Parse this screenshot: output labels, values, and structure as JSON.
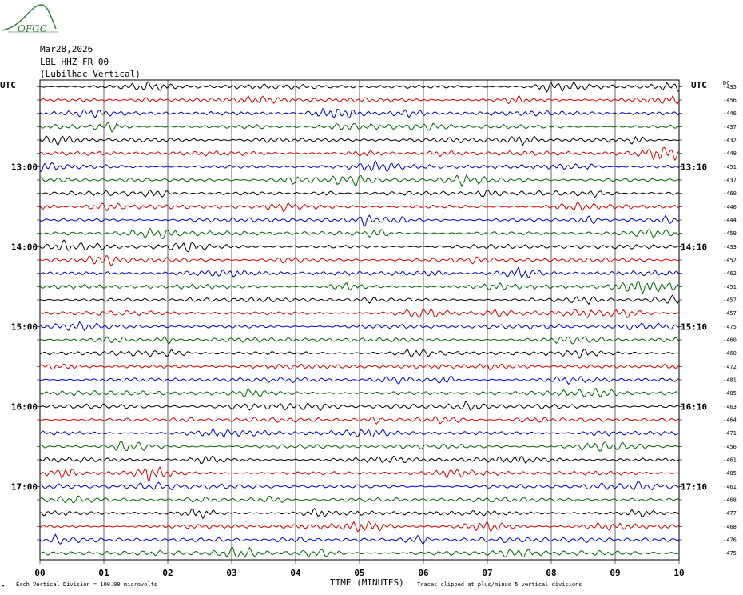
{
  "logo": {
    "text": "OFGC",
    "color": "#3a7a3a"
  },
  "header": {
    "date": "Mar28,2026",
    "station": "LBL HHZ FR 00",
    "location": "(Lubilhac Vertical)"
  },
  "labels": {
    "utc_left": "UTC",
    "utc_right": "UTC",
    "dc": "DC",
    "xlabel": "TIME (MINUTES)",
    "scale_note": "Each Vertical Division =  100.00 microvolts",
    "clip_note": "Traces clipped at plus/minus 5 vertical divisions",
    "corner_mark": "•"
  },
  "colors": [
    "#000000",
    "#d40000",
    "#0000c8",
    "#006400"
  ],
  "chart_data": {
    "type": "line",
    "title": "",
    "xlabel": "TIME (MINUTES)",
    "x_ticks": [
      "00",
      "01",
      "02",
      "03",
      "04",
      "05",
      "06",
      "07",
      "08",
      "09",
      "10"
    ],
    "xlim": [
      0,
      10
    ],
    "grid": true,
    "left_hour_labels": [
      {
        "row": 6,
        "label": "13:00"
      },
      {
        "row": 12,
        "label": "14:00"
      },
      {
        "row": 18,
        "label": "15:00"
      },
      {
        "row": 24,
        "label": "16:00"
      },
      {
        "row": 30,
        "label": "17:00"
      }
    ],
    "right_hour_labels": [
      {
        "row": 6,
        "label": "13:10"
      },
      {
        "row": 12,
        "label": "14:10"
      },
      {
        "row": 18,
        "label": "15:10"
      },
      {
        "row": 24,
        "label": "16:10"
      },
      {
        "row": 30,
        "label": "17:10"
      }
    ],
    "dc_offsets": [
      -435,
      -456,
      -446,
      -437,
      -432,
      -449,
      -451,
      -437,
      -460,
      -440,
      -444,
      -459,
      -433,
      -452,
      -462,
      -451,
      -457,
      -457,
      -475,
      -460,
      -460,
      -472,
      -481,
      -485,
      -463,
      -464,
      -471,
      -456,
      -461,
      -485,
      -461,
      -468,
      -477,
      -468,
      -476,
      -475
    ],
    "trace_count": 36,
    "minutes_per_trace": 10
  }
}
